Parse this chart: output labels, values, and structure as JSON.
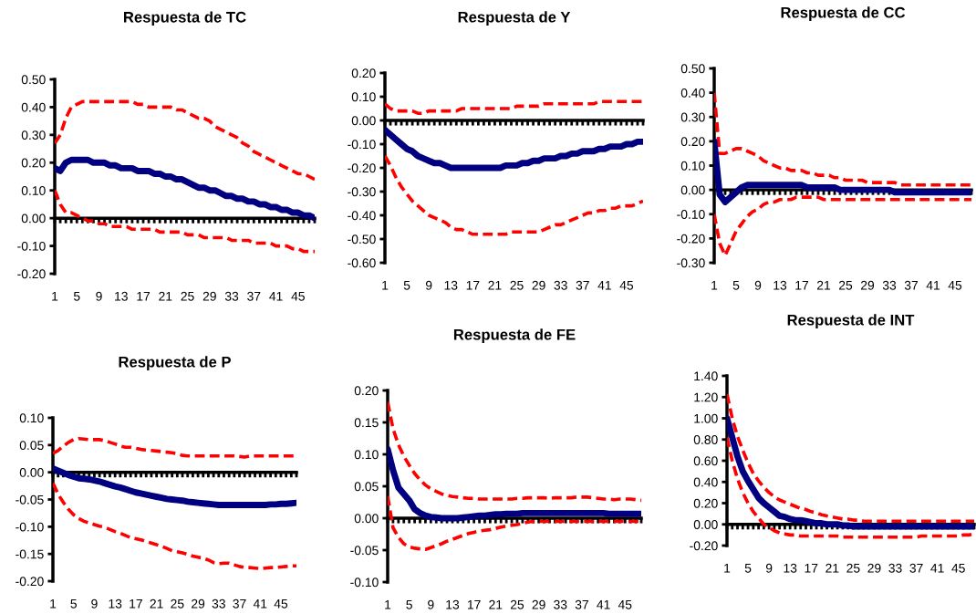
{
  "chart_data": [
    {
      "type": "line",
      "title": "Respuesta de TC",
      "categories": [
        "1",
        null,
        null,
        null,
        "5",
        null,
        null,
        null,
        "9",
        null,
        null,
        null,
        "13",
        null,
        null,
        null,
        "17",
        null,
        null,
        null,
        "21",
        null,
        null,
        null,
        "25",
        null,
        null,
        null,
        "29",
        null,
        null,
        null,
        "33",
        null,
        null,
        null,
        "37",
        null,
        null,
        null,
        "41",
        null,
        null,
        null,
        "45",
        null,
        null,
        null
      ],
      "ylim": [
        -0.2,
        0.5
      ],
      "yticks": [
        {
          "value": -0.2,
          "label": "-0.20"
        },
        {
          "value": -0.1,
          "label": "-0.10"
        },
        {
          "value": 0,
          "label": "0.00"
        },
        {
          "value": 0.1,
          "label": "0.10"
        },
        {
          "value": 0.2,
          "label": "0.20"
        },
        {
          "value": 0.3,
          "label": "0.30"
        },
        {
          "value": 0.4,
          "label": "0.40"
        },
        {
          "value": 0.5,
          "label": "0.50"
        }
      ],
      "series": [
        {
          "color": "#ff0000",
          "line_style": "dashed",
          "values": [
            0.27,
            0.3,
            0.36,
            0.4,
            0.41,
            0.42,
            0.42,
            0.42,
            0.42,
            0.42,
            0.42,
            0.42,
            0.42,
            0.42,
            0.42,
            0.41,
            0.41,
            0.4,
            0.4,
            0.4,
            0.4,
            0.4,
            0.39,
            0.39,
            0.38,
            0.37,
            0.36,
            0.36,
            0.35,
            0.33,
            0.32,
            0.31,
            0.3,
            0.29,
            0.27,
            0.26,
            0.24,
            0.23,
            0.22,
            0.21,
            0.2,
            0.19,
            0.18,
            0.17,
            0.16,
            0.16,
            0.15,
            0.14
          ]
        },
        {
          "color": "#ff0000",
          "line_style": "dashed",
          "values": [
            0.1,
            0.05,
            0.02,
            0.02,
            0.01,
            0.0,
            -0.01,
            -0.01,
            -0.02,
            -0.02,
            -0.03,
            -0.03,
            -0.03,
            -0.03,
            -0.04,
            -0.04,
            -0.04,
            -0.04,
            -0.04,
            -0.05,
            -0.05,
            -0.05,
            -0.05,
            -0.05,
            -0.06,
            -0.06,
            -0.06,
            -0.07,
            -0.07,
            -0.07,
            -0.07,
            -0.07,
            -0.08,
            -0.08,
            -0.08,
            -0.08,
            -0.09,
            -0.09,
            -0.09,
            -0.09,
            -0.1,
            -0.1,
            -0.1,
            -0.11,
            -0.11,
            -0.12,
            -0.12,
            -0.12
          ]
        },
        {
          "color": "#000080",
          "line_style": "solid",
          "values": [
            0.18,
            0.17,
            0.2,
            0.21,
            0.21,
            0.21,
            0.21,
            0.2,
            0.2,
            0.2,
            0.19,
            0.19,
            0.18,
            0.18,
            0.18,
            0.17,
            0.17,
            0.17,
            0.16,
            0.16,
            0.15,
            0.15,
            0.14,
            0.14,
            0.13,
            0.12,
            0.11,
            0.11,
            0.1,
            0.1,
            0.09,
            0.08,
            0.08,
            0.07,
            0.07,
            0.06,
            0.06,
            0.05,
            0.05,
            0.04,
            0.04,
            0.03,
            0.03,
            0.02,
            0.02,
            0.01,
            0.01,
            0.0
          ]
        }
      ]
    },
    {
      "type": "line",
      "title": "Respuesta de Y",
      "categories": [
        "1",
        null,
        null,
        null,
        "5",
        null,
        null,
        null,
        "9",
        null,
        null,
        null,
        "13",
        null,
        null,
        null,
        "17",
        null,
        null,
        null,
        "21",
        null,
        null,
        null,
        "25",
        null,
        null,
        null,
        "29",
        null,
        null,
        null,
        "33",
        null,
        null,
        null,
        "37",
        null,
        null,
        null,
        "41",
        null,
        null,
        null,
        "45",
        null,
        null,
        null
      ],
      "ylim": [
        -0.6,
        0.2
      ],
      "yticks": [
        {
          "value": -0.6,
          "label": "-0.60"
        },
        {
          "value": -0.5,
          "label": "-0.50"
        },
        {
          "value": -0.4,
          "label": "-0.40"
        },
        {
          "value": -0.3,
          "label": "-0.30"
        },
        {
          "value": -0.2,
          "label": "-0.20"
        },
        {
          "value": -0.1,
          "label": "-0.10"
        },
        {
          "value": 0,
          "label": "0.00"
        },
        {
          "value": 0.1,
          "label": "0.10"
        },
        {
          "value": 0.2,
          "label": "0.20"
        }
      ],
      "series": [
        {
          "color": "#ff0000",
          "line_style": "dashed",
          "values": [
            0.07,
            0.05,
            0.04,
            0.04,
            0.04,
            0.04,
            0.03,
            0.03,
            0.04,
            0.04,
            0.04,
            0.04,
            0.04,
            0.04,
            0.05,
            0.05,
            0.05,
            0.05,
            0.05,
            0.05,
            0.05,
            0.05,
            0.05,
            0.05,
            0.06,
            0.06,
            0.06,
            0.06,
            0.06,
            0.07,
            0.07,
            0.07,
            0.07,
            0.07,
            0.07,
            0.07,
            0.07,
            0.07,
            0.07,
            0.08,
            0.08,
            0.08,
            0.08,
            0.08,
            0.08,
            0.08,
            0.08,
            0.08
          ]
        },
        {
          "color": "#ff0000",
          "line_style": "dashed",
          "values": [
            -0.15,
            -0.19,
            -0.24,
            -0.28,
            -0.31,
            -0.34,
            -0.36,
            -0.38,
            -0.4,
            -0.41,
            -0.42,
            -0.43,
            -0.45,
            -0.46,
            -0.46,
            -0.47,
            -0.48,
            -0.48,
            -0.48,
            -0.48,
            -0.48,
            -0.48,
            -0.48,
            -0.47,
            -0.47,
            -0.47,
            -0.47,
            -0.47,
            -0.47,
            -0.46,
            -0.45,
            -0.44,
            -0.44,
            -0.43,
            -0.42,
            -0.41,
            -0.4,
            -0.39,
            -0.39,
            -0.38,
            -0.38,
            -0.37,
            -0.37,
            -0.36,
            -0.36,
            -0.36,
            -0.35,
            -0.34
          ]
        },
        {
          "color": "#000080",
          "line_style": "solid",
          "values": [
            -0.04,
            -0.06,
            -0.08,
            -0.1,
            -0.12,
            -0.13,
            -0.15,
            -0.16,
            -0.17,
            -0.18,
            -0.18,
            -0.19,
            -0.2,
            -0.2,
            -0.2,
            -0.2,
            -0.2,
            -0.2,
            -0.2,
            -0.2,
            -0.2,
            -0.2,
            -0.19,
            -0.19,
            -0.19,
            -0.18,
            -0.18,
            -0.17,
            -0.17,
            -0.16,
            -0.16,
            -0.16,
            -0.15,
            -0.15,
            -0.14,
            -0.14,
            -0.13,
            -0.13,
            -0.13,
            -0.12,
            -0.12,
            -0.11,
            -0.11,
            -0.11,
            -0.1,
            -0.1,
            -0.09,
            -0.09
          ]
        }
      ]
    },
    {
      "type": "line",
      "title": "Respuesta de CC",
      "categories": [
        "1",
        null,
        null,
        null,
        "5",
        null,
        null,
        null,
        "9",
        null,
        null,
        null,
        "13",
        null,
        null,
        null,
        "17",
        null,
        null,
        null,
        "21",
        null,
        null,
        null,
        "25",
        null,
        null,
        null,
        "29",
        null,
        null,
        null,
        "33",
        null,
        null,
        null,
        "37",
        null,
        null,
        null,
        "41",
        null,
        null,
        null,
        "45",
        null,
        null,
        null
      ],
      "ylim": [
        -0.3,
        0.5
      ],
      "yticks": [
        {
          "value": -0.3,
          "label": "-0.30"
        },
        {
          "value": -0.2,
          "label": "-0.20"
        },
        {
          "value": -0.1,
          "label": "-0.10"
        },
        {
          "value": 0,
          "label": "0.00"
        },
        {
          "value": 0.1,
          "label": "0.10"
        },
        {
          "value": 0.2,
          "label": "0.20"
        },
        {
          "value": 0.3,
          "label": "0.30"
        },
        {
          "value": 0.4,
          "label": "0.40"
        },
        {
          "value": 0.5,
          "label": "0.50"
        }
      ],
      "series": [
        {
          "color": "#ff0000",
          "line_style": "dashed",
          "values": [
            0.4,
            0.15,
            0.15,
            0.16,
            0.17,
            0.17,
            0.16,
            0.15,
            0.14,
            0.12,
            0.11,
            0.1,
            0.09,
            0.09,
            0.08,
            0.08,
            0.08,
            0.07,
            0.07,
            0.06,
            0.06,
            0.06,
            0.05,
            0.05,
            0.04,
            0.04,
            0.04,
            0.04,
            0.03,
            0.03,
            0.03,
            0.03,
            0.03,
            0.03,
            0.02,
            0.02,
            0.02,
            0.02,
            0.02,
            0.02,
            0.02,
            0.02,
            0.02,
            0.02,
            0.02,
            0.02,
            0.02,
            0.02
          ]
        },
        {
          "color": "#ff0000",
          "line_style": "dashed",
          "values": [
            -0.1,
            -0.22,
            -0.27,
            -0.22,
            -0.17,
            -0.14,
            -0.11,
            -0.09,
            -0.08,
            -0.06,
            -0.05,
            -0.05,
            -0.04,
            -0.04,
            -0.04,
            -0.03,
            -0.03,
            -0.03,
            -0.03,
            -0.03,
            -0.04,
            -0.04,
            -0.04,
            -0.04,
            -0.04,
            -0.04,
            -0.04,
            -0.04,
            -0.04,
            -0.04,
            -0.04,
            -0.04,
            -0.04,
            -0.04,
            -0.04,
            -0.04,
            -0.04,
            -0.04,
            -0.04,
            -0.04,
            -0.04,
            -0.04,
            -0.04,
            -0.04,
            -0.04,
            -0.04,
            -0.04,
            -0.04
          ]
        },
        {
          "color": "#000080",
          "line_style": "solid",
          "values": [
            0.2,
            -0.02,
            -0.05,
            -0.03,
            -0.01,
            0.01,
            0.02,
            0.02,
            0.02,
            0.02,
            0.02,
            0.02,
            0.02,
            0.02,
            0.02,
            0.02,
            0.02,
            0.01,
            0.01,
            0.01,
            0.01,
            0.01,
            0.01,
            0.0,
            0.0,
            0.0,
            0.0,
            0.0,
            0.0,
            0.0,
            0.0,
            0.0,
            0.0,
            -0.01,
            -0.01,
            -0.01,
            -0.01,
            -0.01,
            -0.01,
            -0.01,
            -0.01,
            -0.01,
            -0.01,
            -0.01,
            -0.01,
            -0.01,
            -0.01,
            -0.01
          ]
        }
      ]
    },
    {
      "type": "line",
      "title": "Respuesta de P",
      "categories": [
        "1",
        null,
        null,
        null,
        "5",
        null,
        null,
        null,
        "9",
        null,
        null,
        null,
        "13",
        null,
        null,
        null,
        "17",
        null,
        null,
        null,
        "21",
        null,
        null,
        null,
        "25",
        null,
        null,
        null,
        "29",
        null,
        null,
        null,
        "33",
        null,
        null,
        null,
        "37",
        null,
        null,
        null,
        "41",
        null,
        null,
        null,
        "45",
        null,
        null,
        null
      ],
      "ylim": [
        -0.2,
        0.1
      ],
      "yticks": [
        {
          "value": -0.2,
          "label": "-0.20"
        },
        {
          "value": -0.15,
          "label": "-0.15"
        },
        {
          "value": -0.1,
          "label": "-0.10"
        },
        {
          "value": -0.05,
          "label": "-0.05"
        },
        {
          "value": 0,
          "label": "0.00"
        },
        {
          "value": 0.05,
          "label": "0.05"
        },
        {
          "value": 0.1,
          "label": "0.10"
        }
      ],
      "series": [
        {
          "color": "#ff0000",
          "line_style": "dashed",
          "values": [
            0.035,
            0.04,
            0.048,
            0.055,
            0.06,
            0.062,
            0.061,
            0.06,
            0.06,
            0.06,
            0.058,
            0.055,
            0.052,
            0.048,
            0.046,
            0.046,
            0.044,
            0.042,
            0.041,
            0.04,
            0.039,
            0.038,
            0.037,
            0.036,
            0.034,
            0.031,
            0.03,
            0.03,
            0.03,
            0.03,
            0.03,
            0.03,
            0.03,
            0.03,
            0.03,
            0.03,
            0.029,
            0.028,
            0.03,
            0.03,
            0.03,
            0.03,
            0.03,
            0.03,
            0.03,
            0.03,
            0.03,
            0.03
          ]
        },
        {
          "color": "#ff0000",
          "line_style": "dashed",
          "values": [
            -0.02,
            -0.04,
            -0.055,
            -0.068,
            -0.078,
            -0.085,
            -0.09,
            -0.093,
            -0.096,
            -0.099,
            -0.101,
            -0.105,
            -0.109,
            -0.112,
            -0.116,
            -0.12,
            -0.122,
            -0.124,
            -0.127,
            -0.13,
            -0.133,
            -0.136,
            -0.14,
            -0.144,
            -0.146,
            -0.148,
            -0.151,
            -0.154,
            -0.156,
            -0.158,
            -0.161,
            -0.166,
            -0.168,
            -0.167,
            -0.167,
            -0.17,
            -0.173,
            -0.175,
            -0.175,
            -0.176,
            -0.177,
            -0.176,
            -0.175,
            -0.175,
            -0.174,
            -0.173,
            -0.172,
            -0.172
          ]
        },
        {
          "color": "#000080",
          "line_style": "solid",
          "values": [
            0.007,
            0.003,
            -0.001,
            -0.005,
            -0.008,
            -0.011,
            -0.012,
            -0.013,
            -0.015,
            -0.017,
            -0.02,
            -0.023,
            -0.026,
            -0.028,
            -0.031,
            -0.034,
            -0.037,
            -0.039,
            -0.041,
            -0.043,
            -0.045,
            -0.047,
            -0.049,
            -0.05,
            -0.051,
            -0.052,
            -0.054,
            -0.055,
            -0.056,
            -0.057,
            -0.058,
            -0.059,
            -0.06,
            -0.06,
            -0.06,
            -0.06,
            -0.06,
            -0.06,
            -0.06,
            -0.06,
            -0.06,
            -0.06,
            -0.059,
            -0.059,
            -0.058,
            -0.058,
            -0.057,
            -0.056
          ]
        }
      ]
    },
    {
      "type": "line",
      "title": "Respuesta de FE",
      "categories": [
        "1",
        null,
        null,
        null,
        "5",
        null,
        null,
        null,
        "9",
        null,
        null,
        null,
        "13",
        null,
        null,
        null,
        "17",
        null,
        null,
        null,
        "21",
        null,
        null,
        null,
        "25",
        null,
        null,
        null,
        "29",
        null,
        null,
        null,
        "33",
        null,
        null,
        null,
        "37",
        null,
        null,
        null,
        "41",
        null,
        null,
        null,
        "45",
        null,
        null,
        null
      ],
      "ylim": [
        -0.1,
        0.2
      ],
      "yticks": [
        {
          "value": -0.1,
          "label": "-0.10"
        },
        {
          "value": -0.05,
          "label": "-0.05"
        },
        {
          "value": 0,
          "label": "0.00"
        },
        {
          "value": 0.05,
          "label": "0.05"
        },
        {
          "value": 0.1,
          "label": "0.10"
        },
        {
          "value": 0.15,
          "label": "0.15"
        },
        {
          "value": 0.2,
          "label": "0.20"
        }
      ],
      "series": [
        {
          "color": "#ff0000",
          "line_style": "dashed",
          "values": [
            0.182,
            0.14,
            0.115,
            0.097,
            0.083,
            0.07,
            0.06,
            0.052,
            0.046,
            0.042,
            0.038,
            0.036,
            0.034,
            0.033,
            0.032,
            0.031,
            0.031,
            0.03,
            0.03,
            0.03,
            0.03,
            0.03,
            0.03,
            0.03,
            0.031,
            0.031,
            0.032,
            0.032,
            0.032,
            0.032,
            0.031,
            0.032,
            0.032,
            0.032,
            0.032,
            0.033,
            0.033,
            0.033,
            0.032,
            0.031,
            0.03,
            0.03,
            0.029,
            0.03,
            0.03,
            0.03,
            0.029,
            0.028
          ]
        },
        {
          "color": "#ff0000",
          "line_style": "dashed",
          "values": [
            0.035,
            -0.015,
            -0.03,
            -0.04,
            -0.045,
            -0.047,
            -0.048,
            -0.049,
            -0.046,
            -0.043,
            -0.04,
            -0.036,
            -0.033,
            -0.03,
            -0.027,
            -0.024,
            -0.022,
            -0.02,
            -0.019,
            -0.018,
            -0.016,
            -0.014,
            -0.012,
            -0.011,
            -0.01,
            -0.008,
            -0.006,
            -0.005,
            -0.005,
            -0.005,
            -0.005,
            -0.005,
            -0.005,
            -0.005,
            -0.005,
            -0.005,
            -0.005,
            -0.005,
            -0.005,
            -0.005,
            -0.005,
            -0.005,
            -0.005,
            -0.005,
            -0.005,
            -0.005,
            -0.005,
            -0.005
          ]
        },
        {
          "color": "#000080",
          "line_style": "solid",
          "values": [
            0.108,
            0.075,
            0.048,
            0.038,
            0.028,
            0.014,
            0.008,
            0.004,
            0.002,
            0.001,
            0.0,
            0.0,
            0.0,
            0.0,
            0.001,
            0.002,
            0.003,
            0.004,
            0.004,
            0.005,
            0.006,
            0.006,
            0.007,
            0.007,
            0.007,
            0.008,
            0.008,
            0.008,
            0.008,
            0.008,
            0.008,
            0.008,
            0.008,
            0.008,
            0.008,
            0.008,
            0.008,
            0.008,
            0.008,
            0.008,
            0.008,
            0.007,
            0.007,
            0.007,
            0.007,
            0.007,
            0.007,
            0.007
          ]
        }
      ]
    },
    {
      "type": "line",
      "title": "Respuesta de INT",
      "categories": [
        "1",
        null,
        null,
        null,
        "5",
        null,
        null,
        null,
        "9",
        null,
        null,
        null,
        "13",
        null,
        null,
        null,
        "17",
        null,
        null,
        null,
        "21",
        null,
        null,
        null,
        "25",
        null,
        null,
        null,
        "29",
        null,
        null,
        null,
        "33",
        null,
        null,
        null,
        "37",
        null,
        null,
        null,
        "41",
        null,
        null,
        null,
        "45",
        null,
        null,
        null
      ],
      "ylim": [
        -0.2,
        1.4
      ],
      "yticks": [
        {
          "value": -0.2,
          "label": "-0.20"
        },
        {
          "value": 0,
          "label": "0.00"
        },
        {
          "value": 0.2,
          "label": "0.20"
        },
        {
          "value": 0.4,
          "label": "0.40"
        },
        {
          "value": 0.6,
          "label": "0.60"
        },
        {
          "value": 0.8,
          "label": "0.80"
        },
        {
          "value": 1.0,
          "label": "1.00"
        },
        {
          "value": 1.2,
          "label": "1.20"
        },
        {
          "value": 1.4,
          "label": "1.40"
        }
      ],
      "series": [
        {
          "color": "#ff0000",
          "line_style": "dashed",
          "values": [
            1.23,
            1.0,
            0.83,
            0.7,
            0.58,
            0.48,
            0.41,
            0.35,
            0.3,
            0.26,
            0.23,
            0.21,
            0.19,
            0.17,
            0.15,
            0.14,
            0.12,
            0.11,
            0.09,
            0.08,
            0.07,
            0.06,
            0.05,
            0.05,
            0.04,
            0.04,
            0.03,
            0.03,
            0.03,
            0.03,
            0.03,
            0.03,
            0.03,
            0.03,
            0.03,
            0.03,
            0.03,
            0.03,
            0.03,
            0.03,
            0.03,
            0.03,
            0.03,
            0.03,
            0.03,
            0.03,
            0.03,
            0.03
          ]
        },
        {
          "color": "#ff0000",
          "line_style": "dashed",
          "values": [
            0.82,
            0.6,
            0.43,
            0.3,
            0.2,
            0.12,
            0.06,
            0.0,
            -0.03,
            -0.06,
            -0.08,
            -0.09,
            -0.1,
            -0.1,
            -0.11,
            -0.11,
            -0.11,
            -0.11,
            -0.11,
            -0.11,
            -0.11,
            -0.11,
            -0.12,
            -0.12,
            -0.12,
            -0.12,
            -0.12,
            -0.12,
            -0.12,
            -0.12,
            -0.12,
            -0.12,
            -0.12,
            -0.12,
            -0.12,
            -0.12,
            -0.12,
            -0.11,
            -0.11,
            -0.11,
            -0.11,
            -0.11,
            -0.11,
            -0.11,
            -0.11,
            -0.1,
            -0.1,
            -0.09
          ]
        },
        {
          "color": "#000080",
          "line_style": "solid",
          "values": [
            1.0,
            0.82,
            0.64,
            0.5,
            0.41,
            0.33,
            0.25,
            0.2,
            0.16,
            0.12,
            0.08,
            0.07,
            0.05,
            0.04,
            0.04,
            0.03,
            0.02,
            0.01,
            0.01,
            0.0,
            0.0,
            0.0,
            -0.01,
            -0.01,
            -0.02,
            -0.02,
            -0.02,
            -0.02,
            -0.02,
            -0.02,
            -0.02,
            -0.02,
            -0.02,
            -0.02,
            -0.02,
            -0.02,
            -0.02,
            -0.02,
            -0.02,
            -0.02,
            -0.02,
            -0.02,
            -0.02,
            -0.02,
            -0.02,
            -0.02,
            -0.02,
            -0.02
          ]
        }
      ]
    }
  ]
}
